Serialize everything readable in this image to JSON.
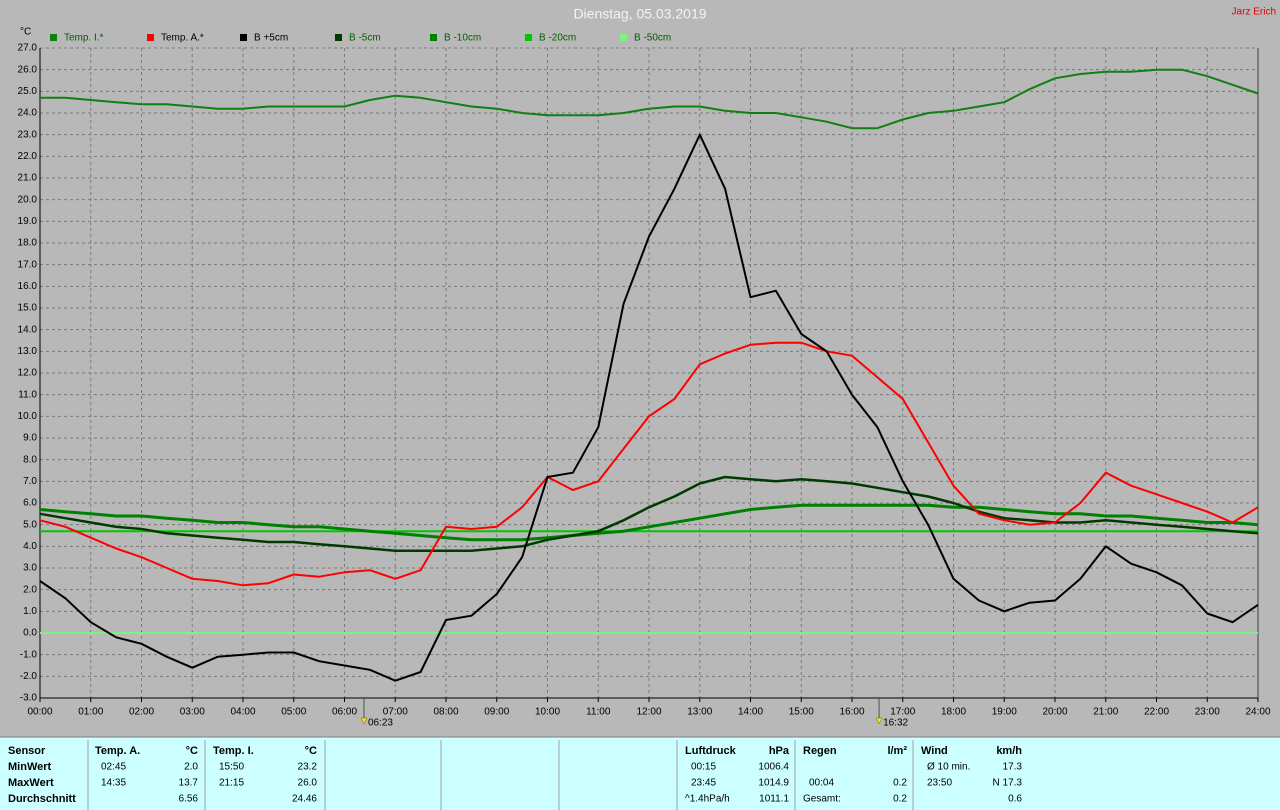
{
  "chart_data": {
    "type": "line",
    "title": "Dienstag, 05.03.2019",
    "author": "Jarz Erich",
    "y_unit": "°C",
    "grid": true,
    "x": [
      0,
      0.5,
      1,
      1.5,
      2,
      2.5,
      3,
      3.5,
      4,
      4.5,
      5,
      5.5,
      6,
      6.5,
      7,
      7.5,
      8,
      8.5,
      9,
      9.5,
      10,
      10.5,
      11,
      11.5,
      12,
      12.5,
      13,
      13.5,
      14,
      14.5,
      15,
      15.5,
      16,
      16.5,
      17,
      17.5,
      18,
      18.5,
      19,
      19.5,
      20,
      20.5,
      21,
      21.5,
      22,
      22.5,
      23,
      23.5,
      24
    ],
    "xlim": [
      0,
      24
    ],
    "xticks": [
      {
        "value": 0,
        "label": "00:00"
      },
      {
        "value": 1,
        "label": "01:00"
      },
      {
        "value": 2,
        "label": "02:00"
      },
      {
        "value": 3,
        "label": "03:00"
      },
      {
        "value": 4,
        "label": "04:00"
      },
      {
        "value": 5,
        "label": "05:00"
      },
      {
        "value": 6,
        "label": "06:00"
      },
      {
        "value": 7,
        "label": "07:00"
      },
      {
        "value": 8,
        "label": "08:00"
      },
      {
        "value": 9,
        "label": "09:00"
      },
      {
        "value": 10,
        "label": "10:00"
      },
      {
        "value": 11,
        "label": "11:00"
      },
      {
        "value": 12,
        "label": "12:00"
      },
      {
        "value": 13,
        "label": "13:00"
      },
      {
        "value": 14,
        "label": "14:00"
      },
      {
        "value": 15,
        "label": "15:00"
      },
      {
        "value": 16,
        "label": "16:00"
      },
      {
        "value": 17,
        "label": "17:00"
      },
      {
        "value": 18,
        "label": "18:00"
      },
      {
        "value": 19,
        "label": "19:00"
      },
      {
        "value": 20,
        "label": "20:00"
      },
      {
        "value": 21,
        "label": "21:00"
      },
      {
        "value": 22,
        "label": "22:00"
      },
      {
        "value": 23,
        "label": "23:00"
      },
      {
        "value": 24,
        "label": "24:00"
      }
    ],
    "ylim": [
      -3,
      27
    ],
    "yticks": [
      {
        "value": -3,
        "label": "-3.0"
      },
      {
        "value": -2,
        "label": "-2.0"
      },
      {
        "value": -1,
        "label": "-1.0"
      },
      {
        "value": 0,
        "label": "0.0"
      },
      {
        "value": 1,
        "label": "1.0"
      },
      {
        "value": 2,
        "label": "2.0"
      },
      {
        "value": 3,
        "label": "3.0"
      },
      {
        "value": 4,
        "label": "4.0"
      },
      {
        "value": 5,
        "label": "5.0"
      },
      {
        "value": 6,
        "label": "6.0"
      },
      {
        "value": 7,
        "label": "7.0"
      },
      {
        "value": 8,
        "label": "8.0"
      },
      {
        "value": 9,
        "label": "9.0"
      },
      {
        "value": 10,
        "label": "10.0"
      },
      {
        "value": 11,
        "label": "11.0"
      },
      {
        "value": 12,
        "label": "12.0"
      },
      {
        "value": 13,
        "label": "13.0"
      },
      {
        "value": 14,
        "label": "14.0"
      },
      {
        "value": 15,
        "label": "15.0"
      },
      {
        "value": 16,
        "label": "16.0"
      },
      {
        "value": 17,
        "label": "17.0"
      },
      {
        "value": 18,
        "label": "18.0"
      },
      {
        "value": 19,
        "label": "19.0"
      },
      {
        "value": 20,
        "label": "20.0"
      },
      {
        "value": 21,
        "label": "21.0"
      },
      {
        "value": 22,
        "label": "22.0"
      },
      {
        "value": 23,
        "label": "23.0"
      },
      {
        "value": 24,
        "label": "24.0"
      },
      {
        "value": 25,
        "label": "25.0"
      },
      {
        "value": 26,
        "label": "26.0"
      },
      {
        "value": 27,
        "label": "27.0"
      }
    ],
    "sun_markers": [
      {
        "value": 6.3833,
        "label": "06:23"
      },
      {
        "value": 16.5333,
        "label": "16:32"
      }
    ],
    "series": [
      {
        "name": "Temp. I.*",
        "color": "#108010",
        "values": [
          24.7,
          24.7,
          24.6,
          24.5,
          24.4,
          24.4,
          24.3,
          24.2,
          24.2,
          24.3,
          24.3,
          24.3,
          24.3,
          24.6,
          24.8,
          24.7,
          24.5,
          24.3,
          24.2,
          24.0,
          23.9,
          23.9,
          23.9,
          24.0,
          24.2,
          24.3,
          24.3,
          24.1,
          24.0,
          24.0,
          23.8,
          23.6,
          23.3,
          23.3,
          23.7,
          24.0,
          24.1,
          24.3,
          24.5,
          25.1,
          25.6,
          25.8,
          25.9,
          25.9,
          26.0,
          26.0,
          25.7,
          25.3,
          24.9
        ]
      },
      {
        "name": "Temp. A.*",
        "color": "#ff0000",
        "values": [
          5.2,
          4.9,
          4.4,
          3.9,
          3.5,
          3.0,
          2.5,
          2.4,
          2.2,
          2.3,
          2.7,
          2.6,
          2.8,
          2.9,
          2.5,
          2.9,
          4.9,
          4.8,
          4.9,
          5.8,
          7.2,
          6.6,
          7.0,
          8.5,
          10.0,
          10.8,
          12.4,
          12.9,
          13.3,
          13.4,
          13.4,
          13.0,
          12.8,
          11.8,
          10.8,
          8.8,
          6.8,
          5.5,
          5.2,
          5.0,
          5.1,
          6.0,
          7.4,
          6.8,
          6.4,
          6.0,
          5.6,
          5.1,
          5.8
        ]
      },
      {
        "name": "B +5cm",
        "color": "#000000",
        "values": [
          2.4,
          1.6,
          0.5,
          -0.2,
          -0.5,
          -1.1,
          -1.6,
          -1.1,
          -1.0,
          -0.9,
          -0.9,
          -1.3,
          -1.5,
          -1.7,
          -2.2,
          -1.8,
          0.6,
          0.8,
          1.8,
          3.5,
          7.2,
          7.4,
          9.5,
          15.2,
          18.3,
          20.5,
          23.0,
          20.5,
          15.5,
          15.8,
          13.8,
          13.0,
          11.0,
          9.5,
          7.0,
          5.0,
          2.5,
          1.5,
          1.0,
          1.4,
          1.5,
          2.5,
          4.0,
          3.2,
          2.8,
          2.2,
          0.9,
          0.5,
          1.3
        ]
      },
      {
        "name": "B -5cm",
        "color": "#003a00",
        "values": [
          5.5,
          5.3,
          5.1,
          4.9,
          4.8,
          4.6,
          4.5,
          4.4,
          4.3,
          4.2,
          4.2,
          4.1,
          4.0,
          3.9,
          3.8,
          3.8,
          3.8,
          3.8,
          3.9,
          4.0,
          4.3,
          4.5,
          4.7,
          5.2,
          5.8,
          6.3,
          6.9,
          7.2,
          7.1,
          7.0,
          7.1,
          7.0,
          6.9,
          6.7,
          6.5,
          6.3,
          6.0,
          5.6,
          5.3,
          5.2,
          5.1,
          5.1,
          5.2,
          5.1,
          5.0,
          4.9,
          4.8,
          4.7,
          4.6
        ]
      },
      {
        "name": "B -10cm",
        "color": "#008000",
        "values": [
          5.7,
          5.6,
          5.5,
          5.4,
          5.4,
          5.3,
          5.2,
          5.1,
          5.1,
          5.0,
          4.9,
          4.9,
          4.8,
          4.7,
          4.6,
          4.5,
          4.4,
          4.3,
          4.3,
          4.3,
          4.4,
          4.5,
          4.6,
          4.7,
          4.9,
          5.1,
          5.3,
          5.5,
          5.7,
          5.8,
          5.9,
          5.9,
          5.9,
          5.9,
          5.9,
          5.9,
          5.8,
          5.8,
          5.7,
          5.6,
          5.5,
          5.5,
          5.4,
          5.4,
          5.3,
          5.2,
          5.1,
          5.1,
          5.0
        ]
      },
      {
        "name": "B -20cm",
        "color": "#00c800",
        "values": [
          4.7,
          4.7,
          4.7,
          4.7,
          4.7,
          4.7,
          4.7,
          4.7,
          4.7,
          4.7,
          4.7,
          4.7,
          4.7,
          4.7,
          4.7,
          4.7,
          4.7,
          4.7,
          4.7,
          4.7,
          4.7,
          4.7,
          4.7,
          4.7,
          4.7,
          4.7,
          4.7,
          4.7,
          4.7,
          4.7,
          4.7,
          4.7,
          4.7,
          4.7,
          4.7,
          4.7,
          4.7,
          4.7,
          4.7,
          4.7,
          4.7,
          4.7,
          4.7,
          4.7,
          4.7,
          4.7,
          4.7,
          4.7,
          4.7
        ]
      },
      {
        "name": "B -50cm",
        "color": "#80f080",
        "values": [
          0,
          0,
          0,
          0,
          0,
          0,
          0,
          0,
          0,
          0,
          0,
          0,
          0,
          0,
          0,
          0,
          0,
          0,
          0,
          0,
          0,
          0,
          0,
          0,
          0,
          0,
          0,
          0,
          0,
          0,
          0,
          0,
          0,
          0,
          0,
          0,
          0,
          0,
          0,
          0,
          0,
          0,
          0,
          0,
          0,
          0,
          0,
          0,
          0
        ]
      }
    ]
  },
  "stats_panel": {
    "sensor": {
      "header": "Sensor",
      "rows": [
        "MinWert",
        "MaxWert",
        "Durchschnitt"
      ]
    },
    "columns": [
      {
        "title": "Temp. A.",
        "unit": "°C",
        "min_time": "02:45",
        "min": "2.0",
        "max_time": "14:35",
        "max": "13.7",
        "avg": "6.56"
      },
      {
        "title": "Temp. I.",
        "unit": "°C",
        "min_time": "15:50",
        "min": "23.2",
        "max_time": "21:15",
        "max": "26.0",
        "avg": "24.46"
      },
      {
        "title": "Luftdruck",
        "unit": "hPa",
        "min_time": "00:15",
        "min": "1006.4",
        "max_time": "23:45",
        "max": "1014.9",
        "avg_label": "^1.4hPa/h",
        "avg": "1011.1"
      },
      {
        "title": "Regen",
        "unit": "l/m²",
        "max_time": "00:04",
        "max": "0.2",
        "avg_label": "Gesamt:",
        "avg": "0.2"
      },
      {
        "title": "Wind",
        "unit": "km/h",
        "min_time": "Ø 10 min.",
        "min": "17.3",
        "max_time": "23:50",
        "max": "N 17.3",
        "avg": "0.6"
      }
    ]
  }
}
